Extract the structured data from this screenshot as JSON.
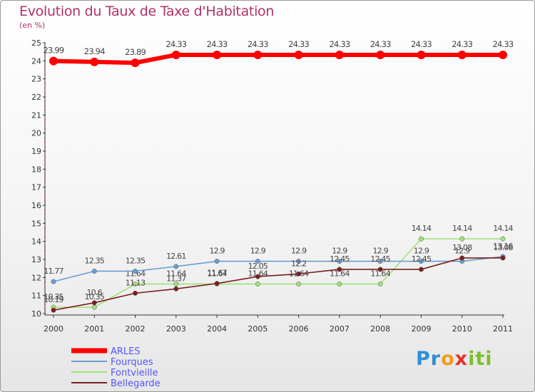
{
  "header": {
    "title": "Evolution du Taux de Taxe d'Habitation",
    "subtitle": "(en %)"
  },
  "logo": {
    "text": "Proxiti"
  },
  "colors": {
    "ARLES": "#ff0000",
    "Fourques": "#6a9ecf",
    "Fontvieille": "#a4e07a",
    "Bellegarde": "#7a1f1f",
    "title": "#b0306a",
    "legend_text": "#5555ff"
  },
  "chart_data": {
    "type": "line",
    "title": "Evolution du Taux de Taxe d'Habitation",
    "subtitle": "(en %)",
    "categories": [
      "2000",
      "2001",
      "2002",
      "2003",
      "2004",
      "2005",
      "2006",
      "2007",
      "2008",
      "2009",
      "2010",
      "2011"
    ],
    "ylim": [
      10,
      25
    ],
    "yticks": [
      10,
      11,
      12,
      13,
      14,
      15,
      16,
      17,
      18,
      19,
      20,
      21,
      22,
      23,
      24,
      25
    ],
    "grid": false,
    "legend_position": "bottom-left",
    "series": [
      {
        "name": "ARLES",
        "values": [
          23.99,
          23.94,
          23.89,
          24.33,
          24.33,
          24.33,
          24.33,
          24.33,
          24.33,
          24.33,
          24.33,
          24.33
        ],
        "labels": [
          "23.99",
          "23.94",
          "23.89",
          "24.33",
          "24.33",
          "24.33",
          "24.33",
          "24.33",
          "24.33",
          "24.33",
          "24.33",
          "24.33"
        ]
      },
      {
        "name": "Fourques",
        "values": [
          11.77,
          12.35,
          12.35,
          12.61,
          12.9,
          12.9,
          12.9,
          12.9,
          12.9,
          12.9,
          12.9,
          13.16
        ],
        "labels": [
          "11.77",
          "12.35",
          "12.35",
          "12.61",
          "12.9",
          "12.9",
          "12.9",
          "12.9",
          "12.9",
          "12.9",
          "12.9",
          "13.16"
        ]
      },
      {
        "name": "Fontvieille",
        "values": [
          10.35,
          10.35,
          11.64,
          11.64,
          11.64,
          11.64,
          11.64,
          11.64,
          11.64,
          14.14,
          14.14,
          14.14
        ],
        "labels": [
          "10.35",
          "10.35",
          "11.64",
          "11.64",
          "11.64",
          "11.64",
          "11.64",
          "11.64",
          "11.64",
          "14.14",
          "14.14",
          "14.14"
        ]
      },
      {
        "name": "Bellegarde",
        "values": [
          10.19,
          10.6,
          11.13,
          11.37,
          11.67,
          12.05,
          12.2,
          12.45,
          12.45,
          12.45,
          13.08,
          13.08
        ],
        "labels": [
          "10.19",
          "10.6",
          "11.13",
          "11.37",
          "11.67",
          "12.05",
          "12.2",
          "12.45",
          "12.45",
          "12.45",
          "13.08",
          "13.08"
        ]
      }
    ]
  }
}
